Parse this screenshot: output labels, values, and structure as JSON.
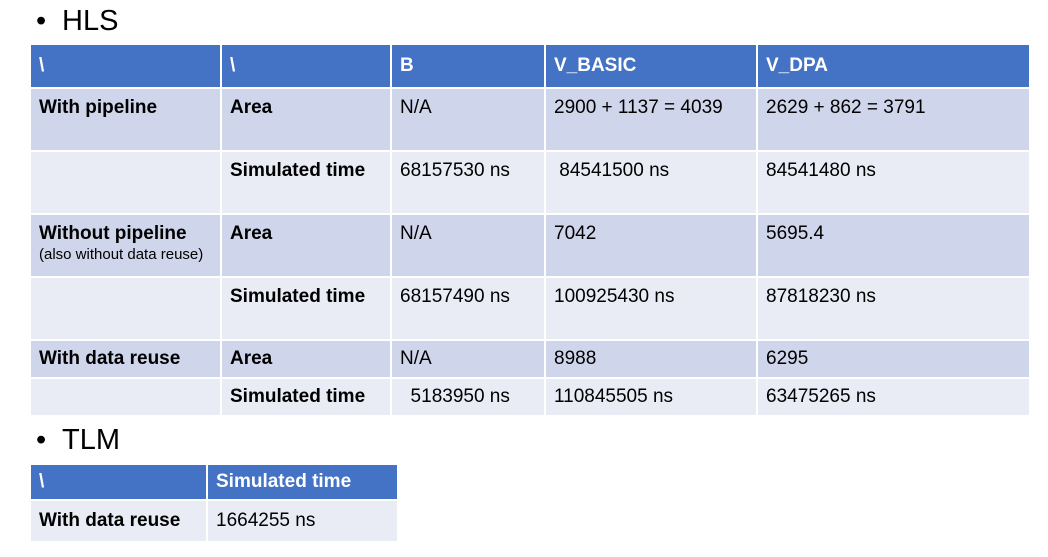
{
  "hls": {
    "bullet": "•",
    "title": "HLS",
    "headers": [
      "\\",
      "\\",
      "B",
      "V_BASIC",
      "V_DPA"
    ],
    "rows": [
      {
        "group": "With pipeline",
        "sub": "",
        "metric": "Area",
        "b": "N/A",
        "v_basic": "2900 + 1137 = 4039",
        "v_dpa": "2629 + 862 = 3791"
      },
      {
        "group": "",
        "sub": "",
        "metric": "Simulated time",
        "b": "68157530 ns",
        "v_basic": " 84541500 ns",
        "v_dpa": "84541480 ns"
      },
      {
        "group": "Without pipeline",
        "sub": "(also without data reuse)",
        "metric": "Area",
        "b": "N/A",
        "v_basic": "7042",
        "v_dpa": "5695.4"
      },
      {
        "group": "",
        "sub": "",
        "metric": "Simulated time",
        "b": "68157490 ns",
        "v_basic": "100925430 ns",
        "v_dpa": "87818230 ns"
      },
      {
        "group": "With data reuse",
        "sub": "",
        "metric": "Area",
        "b": "N/A",
        "v_basic": "8988",
        "v_dpa": "6295"
      },
      {
        "group": "",
        "sub": "",
        "metric": "Simulated time",
        "b": "  5183950 ns",
        "v_basic": "110845505 ns",
        "v_dpa": "63475265 ns"
      }
    ]
  },
  "tlm": {
    "bullet": "•",
    "title": "TLM",
    "headers": [
      "\\",
      "Simulated time"
    ],
    "rows": [
      {
        "label": "With data reuse",
        "value": "1664255 ns"
      }
    ]
  },
  "colors": {
    "header_bg": "#4472c4",
    "row_dark": "#cfd5ea",
    "row_light": "#e9ebf5"
  }
}
